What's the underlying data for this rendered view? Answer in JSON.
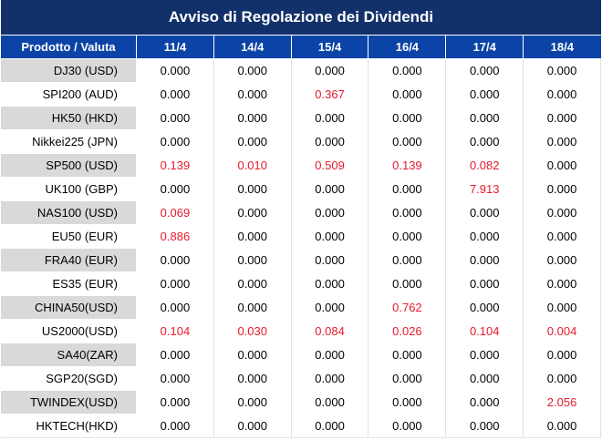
{
  "title": "Avviso di Regolazione dei Dividendi",
  "header": {
    "label": "Prodotto / Valuta",
    "dates": [
      "11/4",
      "14/4",
      "15/4",
      "16/4",
      "17/4",
      "18/4"
    ]
  },
  "colors": {
    "title_bg": "#12306a",
    "header_bg": "#0b44a6",
    "highlight": "#e8192c",
    "shade": "#d9d9d9"
  },
  "rows": [
    {
      "product": "DJ30 (USD)",
      "values": [
        "0.000",
        "0.000",
        "0.000",
        "0.000",
        "0.000",
        "0.000"
      ],
      "red": [
        false,
        false,
        false,
        false,
        false,
        false
      ]
    },
    {
      "product": "SPI200 (AUD)",
      "values": [
        "0.000",
        "0.000",
        "0.367",
        "0.000",
        "0.000",
        "0.000"
      ],
      "red": [
        false,
        false,
        true,
        false,
        false,
        false
      ]
    },
    {
      "product": "HK50 (HKD)",
      "values": [
        "0.000",
        "0.000",
        "0.000",
        "0.000",
        "0.000",
        "0.000"
      ],
      "red": [
        false,
        false,
        false,
        false,
        false,
        false
      ]
    },
    {
      "product": "Nikkei225 (JPN)",
      "values": [
        "0.000",
        "0.000",
        "0.000",
        "0.000",
        "0.000",
        "0.000"
      ],
      "red": [
        false,
        false,
        false,
        false,
        false,
        false
      ]
    },
    {
      "product": "SP500 (USD)",
      "values": [
        "0.139",
        "0.010",
        "0.509",
        "0.139",
        "0.082",
        "0.000"
      ],
      "red": [
        true,
        true,
        true,
        true,
        true,
        false
      ]
    },
    {
      "product": "UK100 (GBP)",
      "values": [
        "0.000",
        "0.000",
        "0.000",
        "0.000",
        "7.913",
        "0.000"
      ],
      "red": [
        false,
        false,
        false,
        false,
        true,
        false
      ]
    },
    {
      "product": "NAS100 (USD)",
      "values": [
        "0.069",
        "0.000",
        "0.000",
        "0.000",
        "0.000",
        "0.000"
      ],
      "red": [
        true,
        false,
        false,
        false,
        false,
        false
      ]
    },
    {
      "product": "EU50 (EUR)",
      "values": [
        "0.886",
        "0.000",
        "0.000",
        "0.000",
        "0.000",
        "0.000"
      ],
      "red": [
        true,
        false,
        false,
        false,
        false,
        false
      ]
    },
    {
      "product": "FRA40 (EUR)",
      "values": [
        "0.000",
        "0.000",
        "0.000",
        "0.000",
        "0.000",
        "0.000"
      ],
      "red": [
        false,
        false,
        false,
        false,
        false,
        false
      ]
    },
    {
      "product": "ES35 (EUR)",
      "values": [
        "0.000",
        "0.000",
        "0.000",
        "0.000",
        "0.000",
        "0.000"
      ],
      "red": [
        false,
        false,
        false,
        false,
        false,
        false
      ]
    },
    {
      "product": "CHINA50(USD)",
      "values": [
        "0.000",
        "0.000",
        "0.000",
        "0.762",
        "0.000",
        "0.000"
      ],
      "red": [
        false,
        false,
        false,
        true,
        false,
        false
      ]
    },
    {
      "product": "US2000(USD)",
      "values": [
        "0.104",
        "0.030",
        "0.084",
        "0.026",
        "0.104",
        "0.004"
      ],
      "red": [
        true,
        true,
        true,
        true,
        true,
        true
      ]
    },
    {
      "product": "SA40(ZAR)",
      "values": [
        "0.000",
        "0.000",
        "0.000",
        "0.000",
        "0.000",
        "0.000"
      ],
      "red": [
        false,
        false,
        false,
        false,
        false,
        false
      ]
    },
    {
      "product": "SGP20(SGD)",
      "values": [
        "0.000",
        "0.000",
        "0.000",
        "0.000",
        "0.000",
        "0.000"
      ],
      "red": [
        false,
        false,
        false,
        false,
        false,
        false
      ]
    },
    {
      "product": "TWINDEX(USD)",
      "values": [
        "0.000",
        "0.000",
        "0.000",
        "0.000",
        "0.000",
        "2.056"
      ],
      "red": [
        false,
        false,
        false,
        false,
        false,
        true
      ]
    },
    {
      "product": "HKTECH(HKD)",
      "values": [
        "0.000",
        "0.000",
        "0.000",
        "0.000",
        "0.000",
        "0.000"
      ],
      "red": [
        false,
        false,
        false,
        false,
        false,
        false
      ]
    }
  ]
}
